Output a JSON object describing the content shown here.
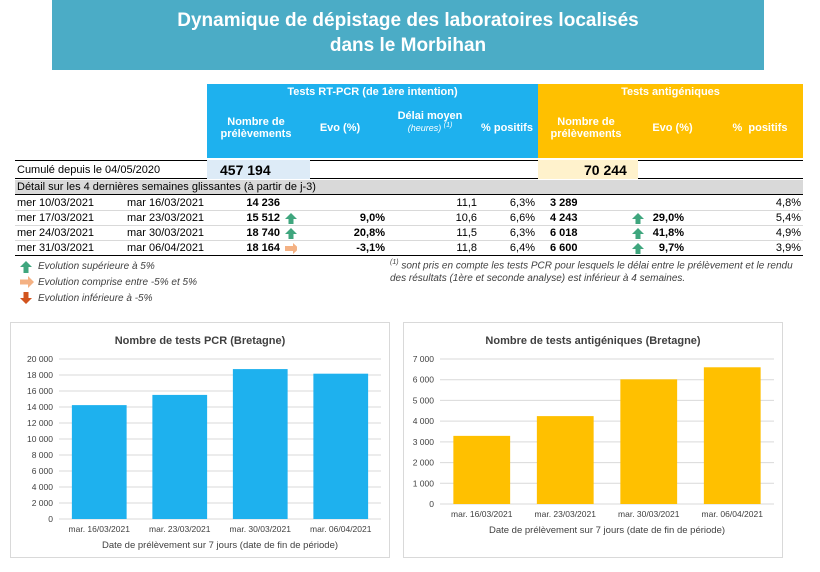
{
  "banner": {
    "line1": "Dynamique de dépistage des laboratoires localisés",
    "line2": "dans le Morbihan"
  },
  "table": {
    "pcr_header": "Tests RT-PCR (de 1ère intention)",
    "antigen_header": "Tests antigéniques",
    "col_prelev": "Nombre de prélèvements",
    "col_evo": "Evo (%)",
    "col_delai": "Délai moyen",
    "col_delai_unit": "(heures)",
    "col_delai_note": "(1)",
    "col_pos": "% positifs",
    "col_prelev_ag": "Nombre de prélèvements",
    "col_evo_ag": "Evo (%)",
    "col_pos_ag": "%  positifs",
    "cumul_label": "Cumulé depuis le 04/05/2020",
    "cumul_pcr": "457 194",
    "cumul_ag": "70 244",
    "detail_label": "Détail sur les 4 dernières semaines glissantes (à partir de j-3)",
    "rows": [
      {
        "start": "mer 10/03/2021",
        "end": "mar 16/03/2021",
        "pcr": "14 236",
        "pcr_arrow": "",
        "pcr_evo": "",
        "delai": "11,1",
        "pcr_pos": "6,3%",
        "ag": "3 289",
        "ag_arrow": "",
        "ag_evo": "",
        "ag_pos": "4,8%"
      },
      {
        "start": "mer 17/03/2021",
        "end": "mar 23/03/2021",
        "pcr": "15 512",
        "pcr_arrow": "up",
        "pcr_evo": "9,0%",
        "delai": "10,6",
        "pcr_pos": "6,6%",
        "ag": "4 243",
        "ag_arrow": "up",
        "ag_evo": "29,0%",
        "ag_pos": "5,4%"
      },
      {
        "start": "mer 24/03/2021",
        "end": "mar 30/03/2021",
        "pcr": "18 740",
        "pcr_arrow": "up",
        "pcr_evo": "20,8%",
        "delai": "11,5",
        "pcr_pos": "6,3%",
        "ag": "6 018",
        "ag_arrow": "up",
        "ag_evo": "41,8%",
        "ag_pos": "4,9%"
      },
      {
        "start": "mer 31/03/2021",
        "end": "mar 06/04/2021",
        "pcr": "18 164",
        "pcr_arrow": "flat",
        "pcr_evo": "-3,1%",
        "delai": "11,8",
        "pcr_pos": "6,4%",
        "ag": "6 600",
        "ag_arrow": "up",
        "ag_evo": "9,7%",
        "ag_pos": "3,9%"
      }
    ]
  },
  "legend": {
    "up": "Evolution supérieure à 5%",
    "flat": "Evolution comprise entre -5% et 5%",
    "down": "Evolution inférieure à -5%",
    "footnote_mark": "(1)",
    "footnote_line1": "sont pris en compte les tests PCR pour lesquels le délai entre le prélèvement et le rendu",
    "footnote_line2": "des résultats (1ère et seconde analyse) est inférieur à 4 semaines."
  },
  "colors": {
    "banner": "#4bacc6",
    "pcr": "#1eb1ee",
    "antigen": "#ffc000",
    "arrow_up": "#3fa67e",
    "arrow_flat": "#f4b183",
    "arrow_down": "#d2541e"
  },
  "chart_data": [
    {
      "type": "bar",
      "title": "Nombre de tests PCR (Bretagne)",
      "categories": [
        "mar. 16/03/2021",
        "mar. 23/03/2021",
        "mar. 30/03/2021",
        "mar. 06/04/2021"
      ],
      "values": [
        14236,
        15512,
        18740,
        18164
      ],
      "xlabel": "Date de prélèvement sur 7 jours (date de fin de période)",
      "ylabel": "",
      "ylim": [
        0,
        20000
      ],
      "yticks": [
        "0",
        "2 000",
        "4 000",
        "6 000",
        "8 000",
        "10 000",
        "12 000",
        "14 000",
        "16 000",
        "18 000",
        "20 000"
      ],
      "color": "#1eb1ee"
    },
    {
      "type": "bar",
      "title": "Nombre de tests antigéniques (Bretagne)",
      "categories": [
        "mar. 16/03/2021",
        "mar. 23/03/2021",
        "mar. 30/03/2021",
        "mar. 06/04/2021"
      ],
      "values": [
        3289,
        4243,
        6018,
        6600
      ],
      "xlabel": "Date de prélèvement sur 7 jours (date de fin de période)",
      "ylabel": "",
      "ylim": [
        0,
        7000
      ],
      "yticks": [
        "0",
        "1 000",
        "2 000",
        "3 000",
        "4 000",
        "5 000",
        "6 000",
        "7 000"
      ],
      "color": "#ffc000"
    }
  ]
}
